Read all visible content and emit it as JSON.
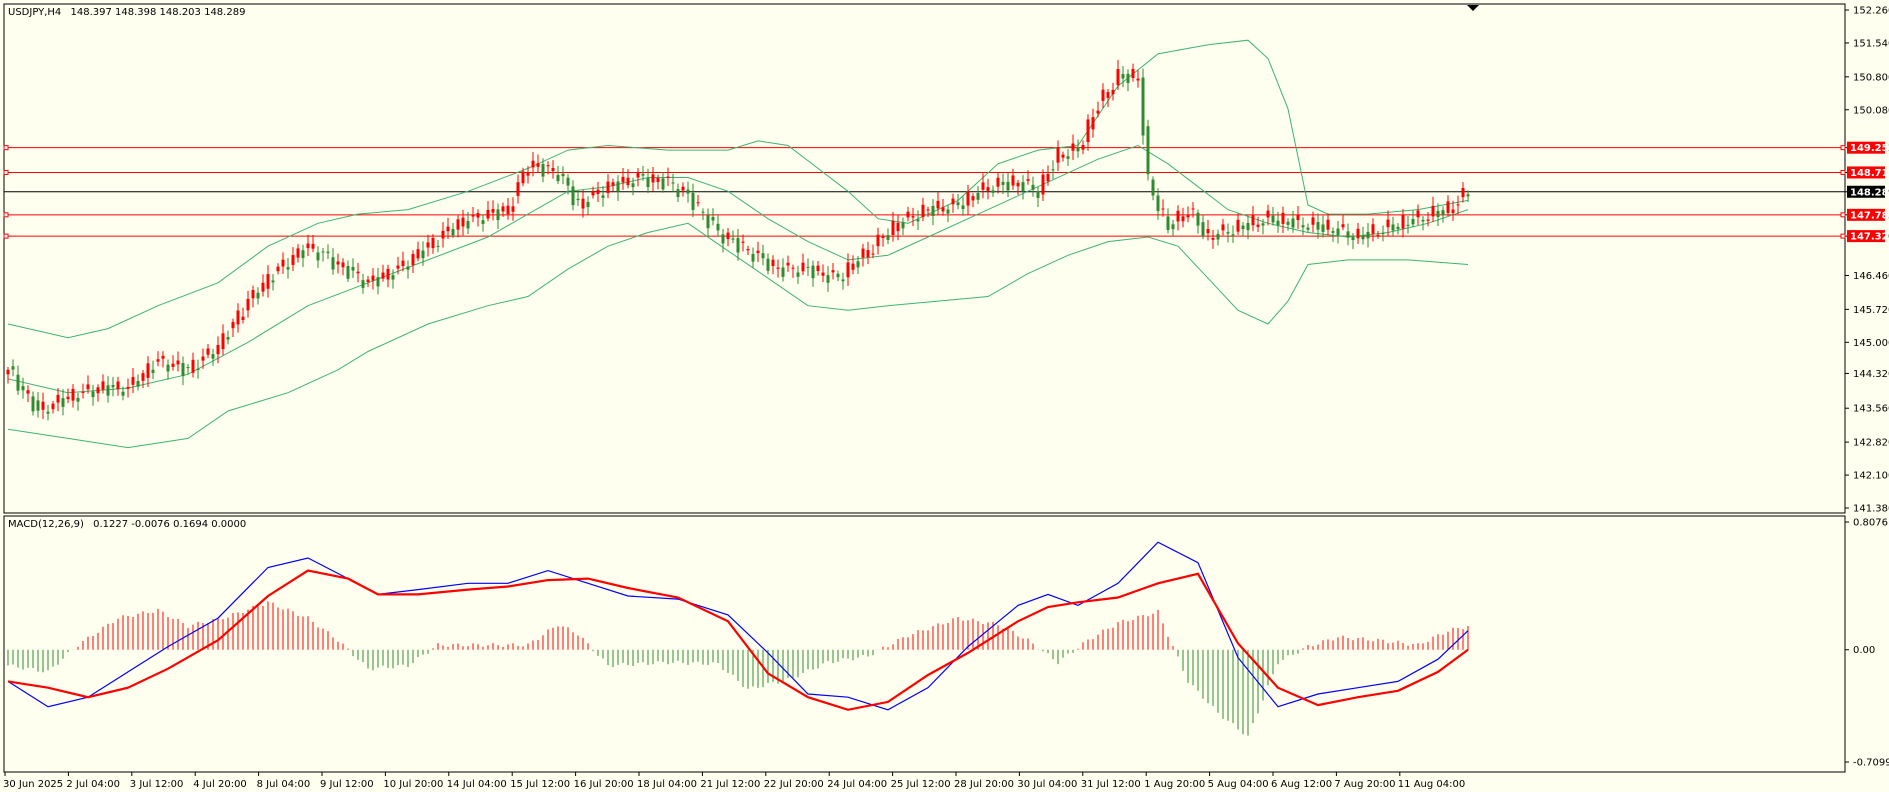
{
  "symbol_header": {
    "symbol": "USDJPY,H4",
    "ohlc": "148.397 148.398 148.203 148.289"
  },
  "macd_header": {
    "label": "MACD(12,26,9)",
    "values": "0.1227 -0.0076 0.1694 0.0000"
  },
  "colors": {
    "background": "#fffff0",
    "bull": "#ff0000",
    "bear": "#2e8b2e",
    "bands": "#3cb371",
    "macd_line": "#0000ff",
    "signal_line": "#ff0000",
    "level_line": "#ff0000",
    "current_line": "#000000"
  },
  "chart_data": [
    {
      "type": "candlestick",
      "symbol": "USDJPY",
      "timeframe": "H4",
      "ylim": [
        141.38,
        152.26
      ],
      "y_ticks": [
        "152.260",
        "151.540",
        "150.800",
        "150.080",
        "149.252",
        "148.711",
        "148.289",
        "147.785",
        "147.320",
        "146.460",
        "145.720",
        "145.000",
        "144.320",
        "143.560",
        "142.820",
        "142.100",
        "141.380"
      ],
      "x_ticks": [
        "30 Jun 2025",
        "2 Jul 04:00",
        "3 Jul 12:00",
        "4 Jul 20:00",
        "8 Jul 04:00",
        "9 Jul 12:00",
        "10 Jul 20:00",
        "14 Jul 04:00",
        "15 Jul 12:00",
        "16 Jul 20:00",
        "18 Jul 04:00",
        "21 Jul 12:00",
        "22 Jul 20:00",
        "24 Jul 04:00",
        "25 Jul 12:00",
        "28 Jul 20:00",
        "30 Jul 04:00",
        "31 Jul 12:00",
        "1 Aug 20:00",
        "5 Aug 04:00",
        "6 Aug 12:00",
        "7 Aug 20:00",
        "11 Aug 04:00"
      ],
      "horizontal_levels": [
        {
          "price": 149.252,
          "label": "149.252"
        },
        {
          "price": 148.711,
          "label": "148.711"
        },
        {
          "price": 147.785,
          "label": "147.785"
        },
        {
          "price": 147.32,
          "label": "147.320"
        }
      ],
      "current_price": {
        "price": 148.289,
        "label": "148.289"
      },
      "close_anchors": [
        [
          0,
          144.4
        ],
        [
          6,
          143.5
        ],
        [
          12,
          143.8
        ],
        [
          18,
          144.0
        ],
        [
          24,
          144.0
        ],
        [
          30,
          144.6
        ],
        [
          36,
          144.4
        ],
        [
          42,
          144.9
        ],
        [
          48,
          145.9
        ],
        [
          54,
          146.6
        ],
        [
          60,
          147.1
        ],
        [
          66,
          146.7
        ],
        [
          72,
          146.3
        ],
        [
          78,
          146.6
        ],
        [
          84,
          147.1
        ],
        [
          90,
          147.6
        ],
        [
          96,
          147.8
        ],
        [
          100,
          147.9
        ],
        [
          104,
          148.9
        ],
        [
          110,
          148.7
        ],
        [
          114,
          148.0
        ],
        [
          120,
          148.4
        ],
        [
          126,
          148.6
        ],
        [
          132,
          148.5
        ],
        [
          136,
          148.2
        ],
        [
          142,
          147.4
        ],
        [
          148,
          147.0
        ],
        [
          154,
          146.6
        ],
        [
          160,
          146.6
        ],
        [
          166,
          146.4
        ],
        [
          172,
          147.0
        ],
        [
          178,
          147.6
        ],
        [
          184,
          147.9
        ],
        [
          190,
          148.0
        ],
        [
          196,
          148.4
        ],
        [
          202,
          148.5
        ],
        [
          206,
          148.3
        ],
        [
          210,
          149.1
        ],
        [
          214,
          149.2
        ],
        [
          218,
          150.2
        ],
        [
          222,
          150.8
        ],
        [
          226,
          150.8
        ],
        [
          228,
          148.5
        ],
        [
          232,
          147.5
        ],
        [
          236,
          147.9
        ],
        [
          240,
          147.3
        ],
        [
          246,
          147.5
        ],
        [
          252,
          147.7
        ],
        [
          258,
          147.6
        ],
        [
          264,
          147.5
        ],
        [
          270,
          147.3
        ],
        [
          276,
          147.5
        ],
        [
          282,
          147.7
        ],
        [
          288,
          147.9
        ],
        [
          292,
          148.289
        ]
      ],
      "bollinger_bands": {
        "upper": [
          [
            0,
            145.4
          ],
          [
            12,
            145.1
          ],
          [
            20,
            145.3
          ],
          [
            30,
            145.8
          ],
          [
            42,
            146.3
          ],
          [
            52,
            147.1
          ],
          [
            62,
            147.6
          ],
          [
            70,
            147.8
          ],
          [
            80,
            147.9
          ],
          [
            92,
            148.3
          ],
          [
            104,
            148.8
          ],
          [
            112,
            149.2
          ],
          [
            120,
            149.3
          ],
          [
            132,
            149.2
          ],
          [
            144,
            149.2
          ],
          [
            150,
            149.4
          ],
          [
            156,
            149.3
          ],
          [
            162,
            148.8
          ],
          [
            168,
            148.3
          ],
          [
            174,
            147.7
          ],
          [
            180,
            147.6
          ],
          [
            190,
            148.1
          ],
          [
            198,
            148.9
          ],
          [
            206,
            149.2
          ],
          [
            214,
            149.3
          ],
          [
            222,
            150.6
          ],
          [
            230,
            151.3
          ],
          [
            240,
            151.5
          ],
          [
            248,
            151.6
          ],
          [
            252,
            151.2
          ],
          [
            256,
            150.1
          ],
          [
            260,
            148.0
          ],
          [
            264,
            147.8
          ],
          [
            272,
            147.8
          ],
          [
            282,
            147.9
          ],
          [
            292,
            148.1
          ]
        ],
        "middle": [
          [
            0,
            144.2
          ],
          [
            12,
            143.9
          ],
          [
            24,
            144.0
          ],
          [
            36,
            144.3
          ],
          [
            48,
            145.0
          ],
          [
            60,
            145.8
          ],
          [
            72,
            146.3
          ],
          [
            84,
            146.8
          ],
          [
            96,
            147.3
          ],
          [
            104,
            147.8
          ],
          [
            112,
            148.3
          ],
          [
            120,
            148.4
          ],
          [
            128,
            148.6
          ],
          [
            136,
            148.6
          ],
          [
            144,
            148.3
          ],
          [
            152,
            147.7
          ],
          [
            160,
            147.2
          ],
          [
            168,
            146.8
          ],
          [
            176,
            146.9
          ],
          [
            184,
            147.3
          ],
          [
            192,
            147.7
          ],
          [
            200,
            148.1
          ],
          [
            208,
            148.5
          ],
          [
            218,
            149.0
          ],
          [
            226,
            149.3
          ],
          [
            232,
            148.9
          ],
          [
            238,
            148.4
          ],
          [
            244,
            147.9
          ],
          [
            252,
            147.6
          ],
          [
            260,
            147.4
          ],
          [
            268,
            147.3
          ],
          [
            276,
            147.4
          ],
          [
            284,
            147.6
          ],
          [
            292,
            147.9
          ]
        ],
        "lower": [
          [
            0,
            143.1
          ],
          [
            12,
            142.9
          ],
          [
            24,
            142.7
          ],
          [
            36,
            142.9
          ],
          [
            44,
            143.5
          ],
          [
            56,
            143.9
          ],
          [
            66,
            144.4
          ],
          [
            72,
            144.8
          ],
          [
            84,
            145.4
          ],
          [
            96,
            145.8
          ],
          [
            104,
            146.0
          ],
          [
            112,
            146.6
          ],
          [
            120,
            147.1
          ],
          [
            128,
            147.4
          ],
          [
            136,
            147.6
          ],
          [
            144,
            147.0
          ],
          [
            152,
            146.4
          ],
          [
            160,
            145.8
          ],
          [
            168,
            145.7
          ],
          [
            176,
            145.8
          ],
          [
            186,
            145.9
          ],
          [
            196,
            146.0
          ],
          [
            204,
            146.5
          ],
          [
            212,
            146.9
          ],
          [
            220,
            147.2
          ],
          [
            228,
            147.3
          ],
          [
            234,
            147.1
          ],
          [
            240,
            146.4
          ],
          [
            246,
            145.7
          ],
          [
            252,
            145.4
          ],
          [
            256,
            145.9
          ],
          [
            260,
            146.7
          ],
          [
            268,
            146.8
          ],
          [
            280,
            146.8
          ],
          [
            292,
            146.7
          ]
        ]
      }
    },
    {
      "type": "macd",
      "label": "MACD(12,26,9)",
      "ylim": [
        -0.7099,
        0.8076
      ],
      "y_ticks": [
        "0.8076",
        "0.00",
        "-0.7099"
      ],
      "histogram": [
        [
          0,
          -0.1
        ],
        [
          8,
          -0.14
        ],
        [
          14,
          0.03
        ],
        [
          22,
          0.2
        ],
        [
          30,
          0.25
        ],
        [
          36,
          0.15
        ],
        [
          44,
          0.21
        ],
        [
          52,
          0.3
        ],
        [
          60,
          0.2
        ],
        [
          66,
          0.06
        ],
        [
          72,
          -0.12
        ],
        [
          80,
          -0.1
        ],
        [
          86,
          0.03
        ],
        [
          96,
          0.03
        ],
        [
          104,
          0.03
        ],
        [
          110,
          0.16
        ],
        [
          114,
          0.1
        ],
        [
          120,
          -0.1
        ],
        [
          132,
          -0.08
        ],
        [
          142,
          -0.09
        ],
        [
          148,
          -0.25
        ],
        [
          156,
          -0.19
        ],
        [
          164,
          -0.08
        ],
        [
          172,
          -0.04
        ],
        [
          180,
          0.09
        ],
        [
          190,
          0.2
        ],
        [
          198,
          0.16
        ],
        [
          204,
          0.06
        ],
        [
          210,
          -0.08
        ],
        [
          216,
          0.06
        ],
        [
          222,
          0.17
        ],
        [
          230,
          0.24
        ],
        [
          236,
          -0.2
        ],
        [
          242,
          -0.4
        ],
        [
          248,
          -0.55
        ],
        [
          254,
          -0.08
        ],
        [
          260,
          0.02
        ],
        [
          266,
          0.08
        ],
        [
          274,
          0.06
        ],
        [
          282,
          0.03
        ],
        [
          288,
          0.12
        ],
        [
          292,
          0.15
        ]
      ],
      "macd_line": [
        [
          0,
          -0.2
        ],
        [
          8,
          -0.36
        ],
        [
          16,
          -0.3
        ],
        [
          24,
          -0.14
        ],
        [
          32,
          0.02
        ],
        [
          42,
          0.2
        ],
        [
          52,
          0.52
        ],
        [
          60,
          0.58
        ],
        [
          68,
          0.45
        ],
        [
          74,
          0.35
        ],
        [
          82,
          0.38
        ],
        [
          92,
          0.42
        ],
        [
          100,
          0.42
        ],
        [
          108,
          0.5
        ],
        [
          116,
          0.42
        ],
        [
          124,
          0.34
        ],
        [
          134,
          0.32
        ],
        [
          144,
          0.22
        ],
        [
          152,
          -0.02
        ],
        [
          160,
          -0.28
        ],
        [
          168,
          -0.3
        ],
        [
          176,
          -0.38
        ],
        [
          184,
          -0.24
        ],
        [
          192,
          0.02
        ],
        [
          202,
          0.28
        ],
        [
          208,
          0.35
        ],
        [
          214,
          0.28
        ],
        [
          222,
          0.42
        ],
        [
          230,
          0.68
        ],
        [
          238,
          0.55
        ],
        [
          246,
          -0.05
        ],
        [
          254,
          -0.36
        ],
        [
          262,
          -0.28
        ],
        [
          270,
          -0.24
        ],
        [
          278,
          -0.2
        ],
        [
          286,
          -0.06
        ],
        [
          292,
          0.12
        ]
      ],
      "signal_line": [
        [
          0,
          -0.2
        ],
        [
          8,
          -0.24
        ],
        [
          16,
          -0.3
        ],
        [
          24,
          -0.24
        ],
        [
          32,
          -0.12
        ],
        [
          42,
          0.06
        ],
        [
          52,
          0.34
        ],
        [
          60,
          0.5
        ],
        [
          68,
          0.45
        ],
        [
          74,
          0.35
        ],
        [
          82,
          0.35
        ],
        [
          92,
          0.38
        ],
        [
          100,
          0.4
        ],
        [
          108,
          0.44
        ],
        [
          116,
          0.45
        ],
        [
          124,
          0.39
        ],
        [
          134,
          0.33
        ],
        [
          144,
          0.18
        ],
        [
          152,
          -0.15
        ],
        [
          160,
          -0.3
        ],
        [
          168,
          -0.38
        ],
        [
          176,
          -0.33
        ],
        [
          184,
          -0.16
        ],
        [
          192,
          -0.02
        ],
        [
          202,
          0.18
        ],
        [
          208,
          0.27
        ],
        [
          214,
          0.3
        ],
        [
          222,
          0.33
        ],
        [
          230,
          0.42
        ],
        [
          238,
          0.48
        ],
        [
          246,
          0.04
        ],
        [
          254,
          -0.24
        ],
        [
          262,
          -0.35
        ],
        [
          270,
          -0.3
        ],
        [
          278,
          -0.26
        ],
        [
          286,
          -0.14
        ],
        [
          292,
          0.0
        ]
      ]
    }
  ]
}
